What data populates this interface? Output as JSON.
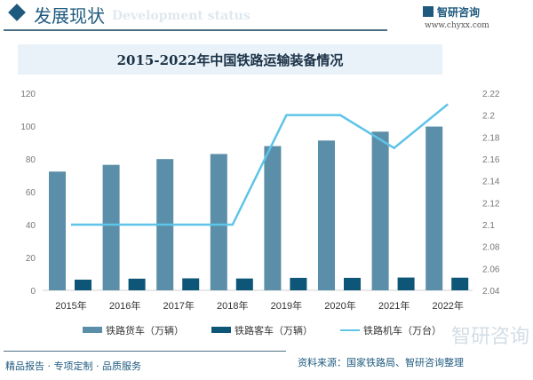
{
  "header": {
    "title": "发展现状",
    "subtitle": "Development status",
    "brand": "智研咨询",
    "url": "www.chyxx.com"
  },
  "colors": {
    "freight": "#5b8ea8",
    "passenger": "#0e5677",
    "locomotive": "#5ec4e8",
    "brand": "#1e5a7e"
  },
  "chart_data": {
    "type": "bar+line",
    "title": "2015-2022年中国铁路运输装备情况",
    "categories": [
      "2015年",
      "2016年",
      "2017年",
      "2018年",
      "2019年",
      "2020年",
      "2021年",
      "2022年"
    ],
    "y_left": {
      "range": [
        0,
        120
      ],
      "ticks": [
        "0",
        "20",
        "40",
        "60",
        "80",
        "100",
        "120"
      ]
    },
    "y_right": {
      "range": [
        2.04,
        2.22
      ],
      "ticks": [
        "2.04",
        "2.06",
        "2.08",
        "2.1",
        "2.12",
        "2.14",
        "2.16",
        "2.18",
        "2.2",
        "2.22"
      ]
    },
    "grid": false,
    "legend_position": "bottom",
    "series": [
      {
        "name": "铁路货车（万辆）",
        "type": "bar",
        "axis": "left",
        "values": [
          72.3,
          76.4,
          79.9,
          83.0,
          87.8,
          91.2,
          96.6,
          99.7
        ]
      },
      {
        "name": "铁路客车（万辆）",
        "type": "bar",
        "axis": "left",
        "values": [
          6.5,
          7.1,
          7.3,
          7.2,
          7.6,
          7.6,
          7.8,
          7.7
        ]
      },
      {
        "name": "铁路机车（万台）",
        "type": "line",
        "axis": "right",
        "values": [
          2.1,
          2.1,
          2.1,
          2.1,
          2.2,
          2.2,
          2.17,
          2.21
        ]
      }
    ]
  },
  "footer": {
    "slogan": "精品报告 · 专项定制 · 品质服务",
    "source": "资料来源：国家铁路局、智研咨询整理",
    "watermark": "智研咨询"
  }
}
